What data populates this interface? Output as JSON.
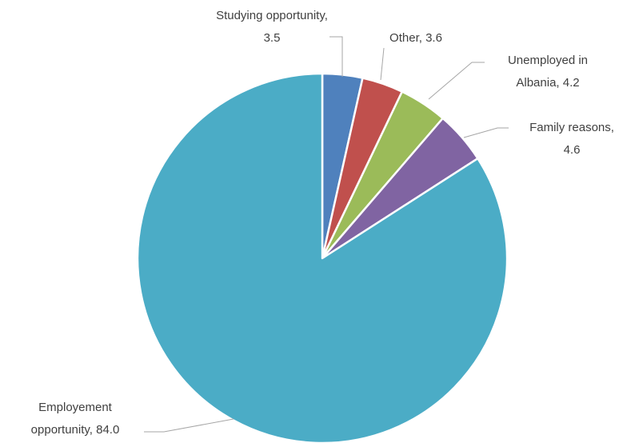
{
  "chart_data": {
    "type": "pie",
    "categories": [
      "Studying opportunity",
      "Other",
      "Unemployed in Albania",
      "Family reasons",
      "Employement opportunity"
    ],
    "values": [
      3.5,
      3.6,
      4.2,
      4.6,
      84.0
    ],
    "value_labels": [
      "3.5",
      "3.6",
      "4.2",
      "4.6",
      "84.0"
    ],
    "label_separator": ", ",
    "colors": [
      "#4f81bd",
      "#c0504d",
      "#9bbb59",
      "#8064a2",
      "#4bacc6"
    ]
  }
}
